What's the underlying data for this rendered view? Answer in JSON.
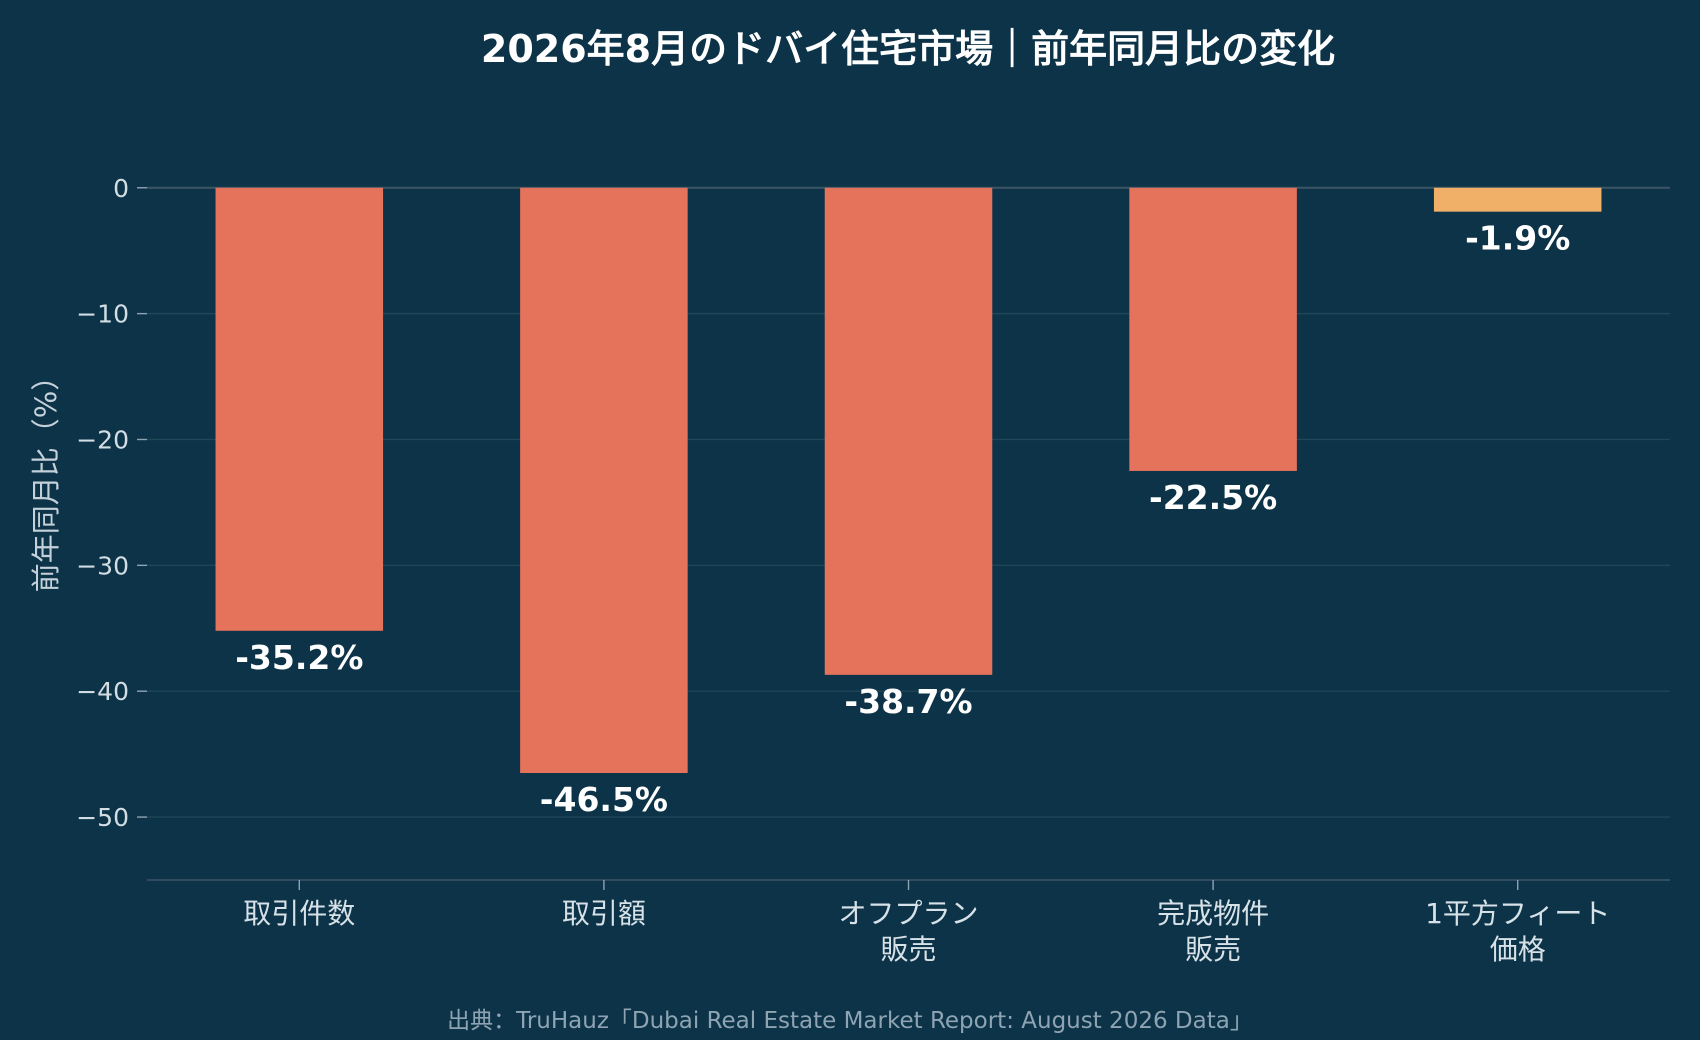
{
  "chart_data": {
    "type": "bar",
    "title": "2026年8月のドバイ住宅市場｜前年同月比の変化",
    "ylabel": "前年同月比（%）",
    "ylim": [
      -55,
      3
    ],
    "yticks": [
      0,
      -10,
      -20,
      -30,
      -40,
      -50
    ],
    "ytick_labels": [
      "0",
      "−10",
      "−20",
      "−30",
      "−40",
      "−50"
    ],
    "categories": [
      [
        "取引件数"
      ],
      [
        "取引額"
      ],
      [
        "オフプラン",
        "販売"
      ],
      [
        "完成物件",
        "販売"
      ],
      [
        "1平方フィート",
        "価格"
      ]
    ],
    "values": [
      -35.2,
      -46.5,
      -38.7,
      -22.5,
      -1.9
    ],
    "value_labels": [
      "-35.2%",
      "-46.5%",
      "-38.7%",
      "-22.5%",
      "-1.9%"
    ],
    "bar_colors": [
      "#e5735c",
      "#e5735c",
      "#e5735c",
      "#e5735c",
      "#f0b068"
    ],
    "grid": true,
    "source": "出典：TruHauz「Dubai Real Estate Market Report: August 2026 Data」"
  }
}
